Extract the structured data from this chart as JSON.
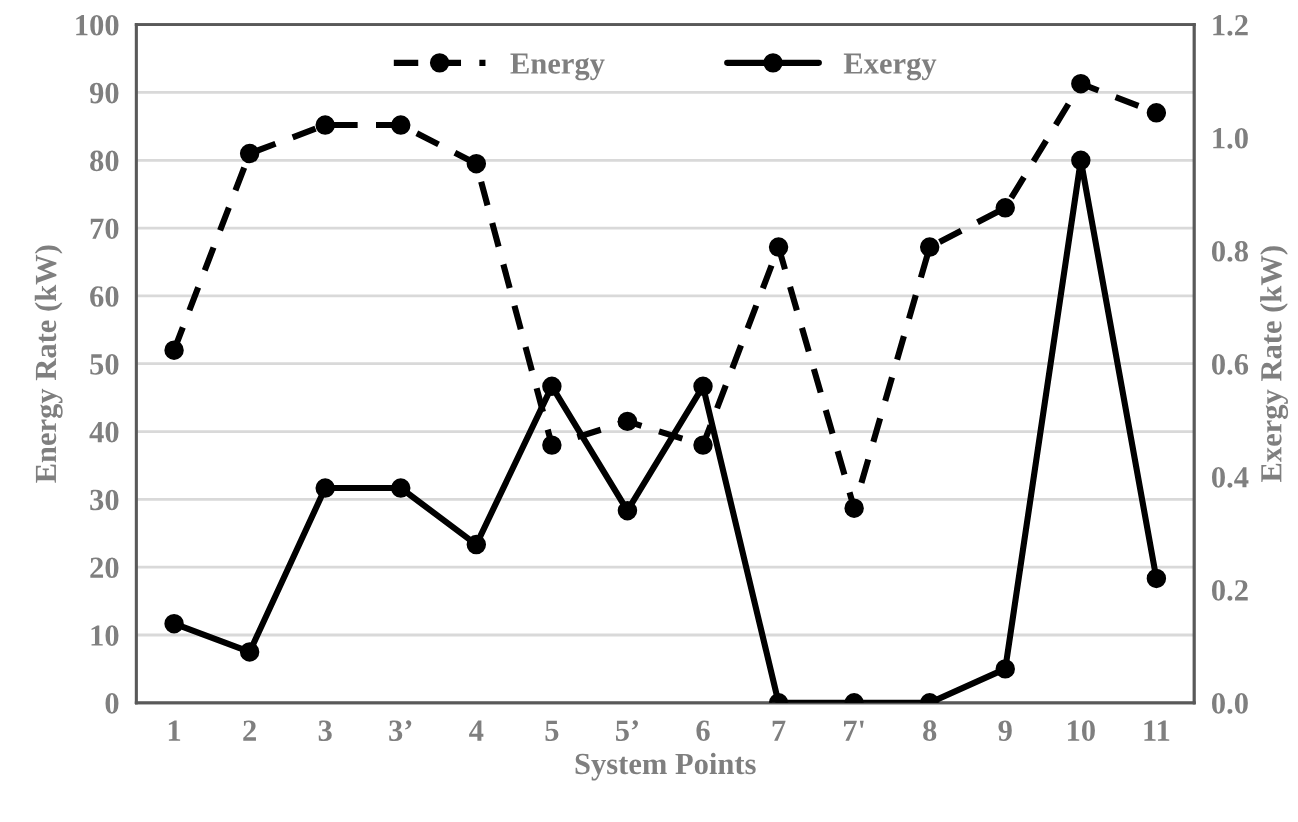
{
  "chart_data": {
    "type": "line",
    "xlabel": "System Points",
    "ylabel": "Energy Rate (kW)",
    "y2label": "Exergy Rate (kW)",
    "categories": [
      "1",
      "2",
      "3",
      "3’",
      "4",
      "5",
      "5’",
      "6",
      "7",
      "7'",
      "8",
      "9",
      "10",
      "11"
    ],
    "series": [
      {
        "name": "Energy",
        "color": "#000000",
        "line_style": "dashed",
        "values": [
          52,
          81,
          85.2,
          85.2,
          79.5,
          38,
          41.5,
          38,
          67.2,
          28.7,
          67.2,
          73,
          91.3,
          87
        ]
      },
      {
        "name": "Exergy",
        "color": "#000000",
        "line_style": "solid",
        "axis": "y2",
        "values": [
          0.14,
          0.09,
          0.38,
          0.38,
          0.28,
          0.56,
          0.34,
          0.56,
          0,
          0,
          0,
          0.06,
          0.96,
          0.22
        ]
      }
    ],
    "ylim": [
      0,
      100
    ],
    "yticks": [
      0,
      10,
      20,
      30,
      40,
      50,
      60,
      70,
      80,
      90,
      100
    ],
    "y2lim": [
      0,
      1.2
    ],
    "y2ticks": [
      {
        "value": 0,
        "label": "0.0"
      },
      {
        "value": 0.2,
        "label": "0.2"
      },
      {
        "value": 0.4,
        "label": "0.4"
      },
      {
        "value": 0.6,
        "label": "0.6"
      },
      {
        "value": 0.8,
        "label": "0.8"
      },
      {
        "value": 1.0,
        "label": "1.0"
      },
      {
        "value": 1.2,
        "label": "1.2"
      }
    ],
    "grid": "y",
    "legend": "top",
    "marker": "circle"
  }
}
